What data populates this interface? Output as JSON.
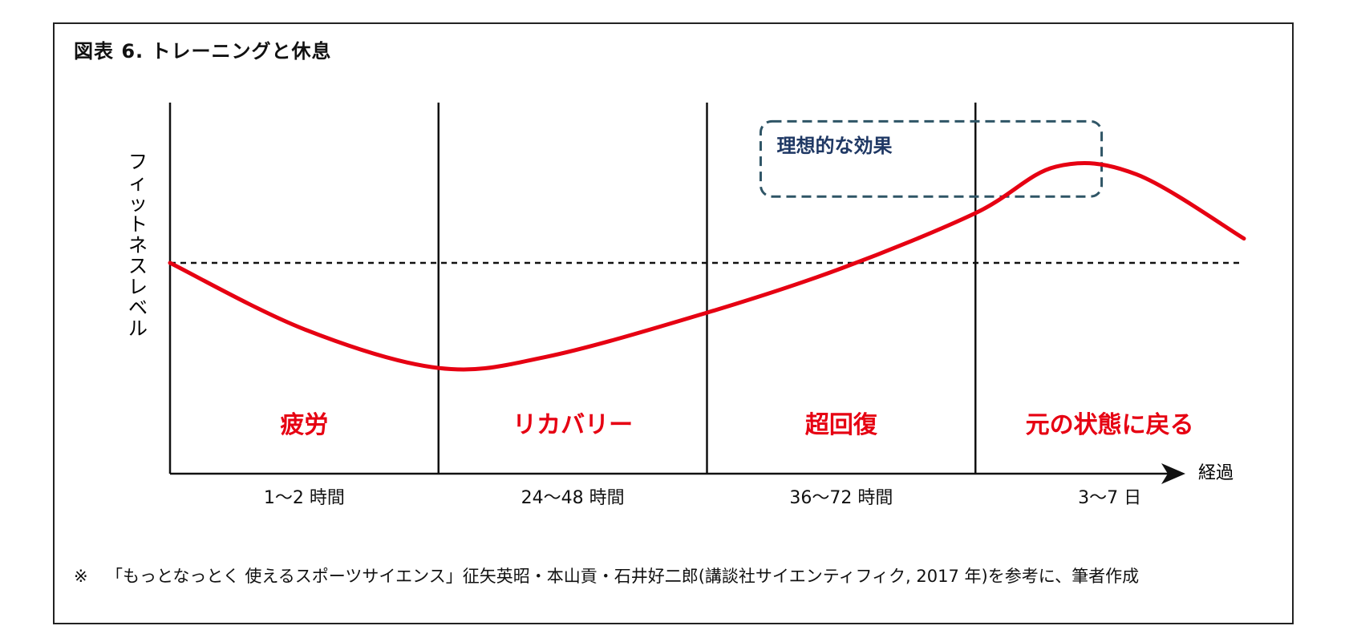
{
  "title": "図表 6.  トレーニングと休息",
  "footnote": {
    "mark": "※",
    "text": "「もっとなっとく 使えるスポーツサイエンス」征矢英昭・本山貢・石井好二郎(講談社サイエンティフィク, 2017 年)を参考に、筆者作成"
  },
  "colors": {
    "curve": "#e60012",
    "phase_label": "#e60012",
    "box_border": "#2f5566",
    "box_label": "#1f3864"
  },
  "chart_data": {
    "type": "line",
    "title": "図表 6.  トレーニングと休息",
    "ylabel": "フィットネスレベル",
    "xlabel": "経過",
    "baseline_label": "",
    "phases": [
      {
        "name": "疲労",
        "duration": "1～2 時間"
      },
      {
        "name": "リカバリー",
        "duration": "24～48 時間"
      },
      {
        "name": "超回復",
        "duration": "36～72 時間"
      },
      {
        "name": "元の状態に戻る",
        "duration": "3～7 日"
      }
    ],
    "highlight_label": "理想的な効果",
    "series": [
      {
        "values_relative_to_baseline": [
          [
            0.0,
            0.0
          ],
          [
            0.5,
            -0.6
          ],
          [
            1.0,
            -0.95
          ],
          [
            1.4,
            -0.85
          ],
          [
            2.0,
            -0.45
          ],
          [
            2.5,
            -0.05
          ],
          [
            3.0,
            0.45
          ],
          [
            3.3,
            0.87
          ],
          [
            3.6,
            0.8
          ],
          [
            4.0,
            0.22
          ]
        ]
      }
    ],
    "grid": false,
    "baseline": "dashed"
  }
}
